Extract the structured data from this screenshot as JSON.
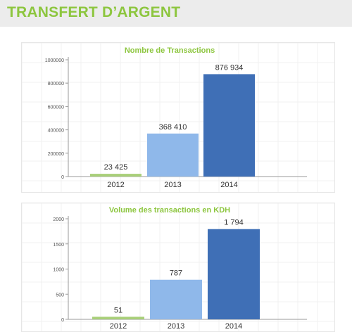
{
  "header": {
    "title": "TRANSFERT D’ARGENT"
  },
  "colors": {
    "accent": "#8dc63f",
    "bar_2012": "#a8cf78",
    "bar_2013": "#8fb8ea",
    "bar_2014": "#3f6fb6"
  },
  "chart_data": [
    {
      "type": "bar",
      "title": "Nombre de Transactions",
      "categories": [
        "2012",
        "2013",
        "2014"
      ],
      "values": [
        23425,
        368410,
        876934
      ],
      "value_labels": [
        "23 425",
        "368 410",
        "876 934"
      ],
      "yticks": [
        0,
        200000,
        400000,
        600000,
        800000,
        1000000
      ],
      "ytick_labels": [
        "0",
        "200000",
        "400000",
        "600000",
        "800000",
        "1000000"
      ],
      "ylim": [
        0,
        1000000
      ],
      "grid": true,
      "xlabel": "",
      "ylabel": ""
    },
    {
      "type": "bar",
      "title": "Volume des transactions en KDH",
      "categories": [
        "2012",
        "2013",
        "2014"
      ],
      "values": [
        51,
        787,
        1794
      ],
      "value_labels": [
        "51",
        "787",
        "1 794"
      ],
      "yticks": [
        0,
        500,
        1000,
        1500,
        2000
      ],
      "ytick_labels": [
        "0",
        "500",
        "1000",
        "1500",
        "2000"
      ],
      "ylim": [
        0,
        2000
      ],
      "grid": true,
      "xlabel": "",
      "ylabel": ""
    }
  ]
}
